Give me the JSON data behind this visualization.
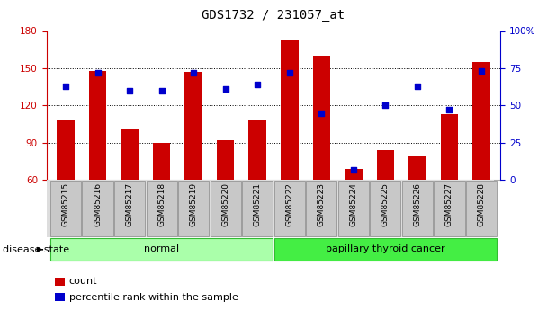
{
  "title": "GDS1732 / 231057_at",
  "samples": [
    "GSM85215",
    "GSM85216",
    "GSM85217",
    "GSM85218",
    "GSM85219",
    "GSM85220",
    "GSM85221",
    "GSM85222",
    "GSM85223",
    "GSM85224",
    "GSM85225",
    "GSM85226",
    "GSM85227",
    "GSM85228"
  ],
  "counts": [
    108,
    148,
    101,
    90,
    147,
    92,
    108,
    173,
    160,
    69,
    84,
    79,
    113,
    155
  ],
  "percentiles": [
    63,
    72,
    60,
    60,
    72,
    61,
    64,
    72,
    45,
    7,
    50,
    63,
    47,
    73
  ],
  "ylim_left": [
    60,
    180
  ],
  "ylim_right": [
    0,
    100
  ],
  "yticks_left": [
    60,
    90,
    120,
    150,
    180
  ],
  "yticks_right": [
    0,
    25,
    50,
    75,
    100
  ],
  "bar_color": "#cc0000",
  "dot_color": "#0000cc",
  "groups": [
    {
      "label": "normal",
      "start": 0,
      "end": 7,
      "color": "#aaffaa"
    },
    {
      "label": "papillary thyroid cancer",
      "start": 7,
      "end": 14,
      "color": "#44ee44"
    }
  ],
  "sample_box_color": "#c8c8c8",
  "sample_box_edge": "#888888",
  "ylabel_left_color": "#cc0000",
  "ylabel_right_color": "#0000cc",
  "background_color": "#ffffff",
  "legend_count_label": "count",
  "legend_percentile_label": "percentile rank within the sample",
  "disease_state_label": "disease state",
  "title_fontsize": 10,
  "tick_fontsize": 7.5,
  "label_fontsize": 6.5,
  "group_fontsize": 8,
  "legend_fontsize": 8,
  "disease_state_fontsize": 8
}
